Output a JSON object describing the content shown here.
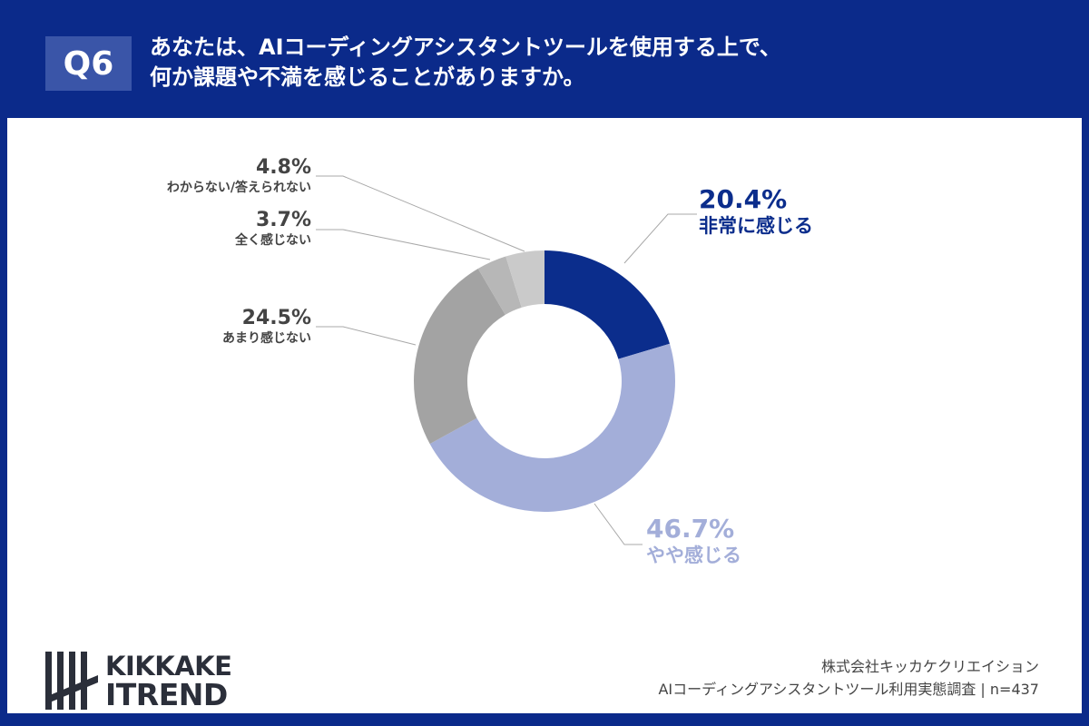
{
  "header": {
    "question_no": "Q6",
    "title_line1": "あなたは、AIコーディングアシスタントツールを使用する上で、",
    "title_line2": "何か課題や不満を感じることがありますか。"
  },
  "colors": {
    "background": "#0b2a8a",
    "qbox": "#3a55a8"
  },
  "chart_data": {
    "type": "pie",
    "variant": "donut",
    "start": "12 o'clock, clockwise",
    "slices": [
      {
        "label": "非常に感じる",
        "value": 20.4,
        "display": "20.4%",
        "color": "#0b2d8c"
      },
      {
        "label": "やや感じる",
        "value": 46.7,
        "display": "46.7%",
        "color": "#a3aed9"
      },
      {
        "label": "あまり感じない",
        "value": 24.5,
        "display": "24.5%",
        "color": "#a3a3a3"
      },
      {
        "label": "全く感じない",
        "value": 3.7,
        "display": "3.7%",
        "color": "#b7b7b7"
      },
      {
        "label": "わからない/答えられない",
        "value": 4.8,
        "display": "4.8%",
        "color": "#cacaca"
      }
    ]
  },
  "logo": {
    "line1": "KIKKAKE",
    "line2": "ITREND"
  },
  "footer": {
    "company": "株式会社キッカケクリエイション",
    "survey": "AIコーディングアシスタントツール利用実態調査 | n=437"
  }
}
